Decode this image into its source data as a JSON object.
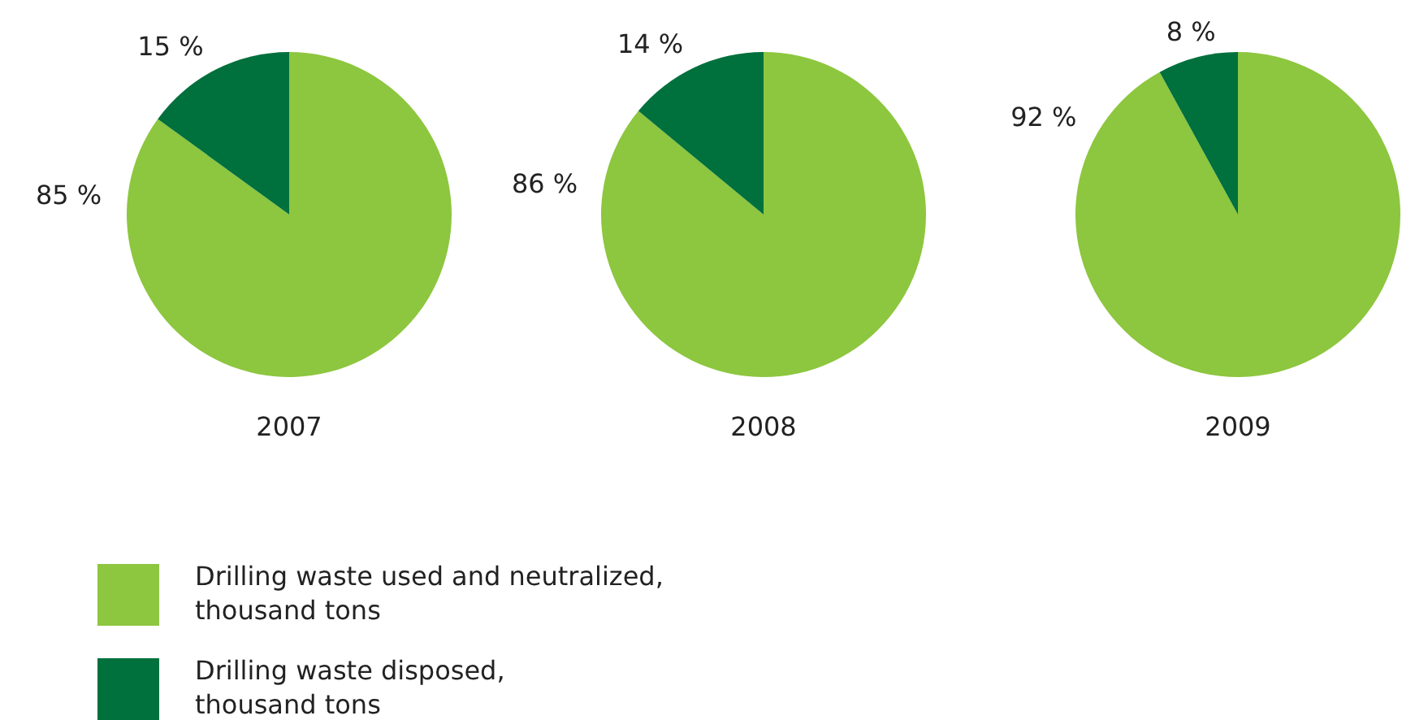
{
  "chart_data": [
    {
      "type": "pie",
      "title": "2007",
      "categories": [
        "Drilling waste used and neutralized, thousand tons",
        "Drilling waste disposed, thousand tons"
      ],
      "values": [
        85,
        15
      ],
      "value_labels": [
        "85 %",
        "15 %"
      ],
      "colors": [
        "#8dc63f",
        "#00703c"
      ],
      "legend": "bottom"
    },
    {
      "type": "pie",
      "title": "2008",
      "categories": [
        null,
        null
      ],
      "values": [
        86,
        14
      ],
      "value_labels": [
        "86 %",
        "14 %"
      ],
      "colors": [
        "#8dc63f",
        "#00703c"
      ],
      "legend": false
    },
    {
      "type": "pie",
      "title": "2009",
      "categories": [
        null,
        null
      ],
      "values": [
        92,
        8
      ],
      "value_labels": [
        "92 %",
        "8 %"
      ],
      "colors": [
        "#8dc63f",
        "#00703c"
      ],
      "legend": false
    }
  ]
}
